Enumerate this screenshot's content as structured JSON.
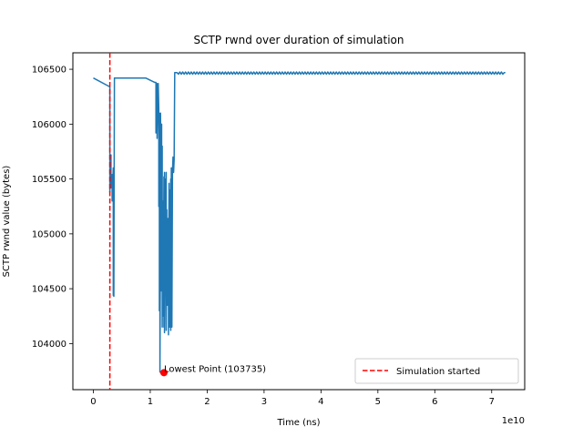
{
  "chart_data": {
    "type": "line",
    "title": "SCTP rwnd over duration of simulation",
    "xlabel": "Time (ns)",
    "ylabel": "SCTP rwnd value (bytes)",
    "x_offset_label": "1e10",
    "xlim": [
      -0.36,
      7.58
    ],
    "ylim": [
      103580,
      106650
    ],
    "x_scale": 10000000000,
    "x_ticks": [
      0,
      1,
      2,
      3,
      4,
      5,
      6,
      7
    ],
    "x_tick_labels": [
      "0",
      "1",
      "2",
      "3",
      "4",
      "5",
      "6",
      "7"
    ],
    "y_ticks": [
      104000,
      104500,
      105000,
      105500,
      106000,
      106500
    ],
    "y_tick_labels": [
      "104000",
      "104500",
      "105000",
      "105500",
      "106000",
      "106500"
    ],
    "grid": false,
    "legend_position": "lower-right",
    "series": [
      {
        "color": "#1f77b4",
        "x": [
          0.0,
          0.29,
          0.29,
          0.31,
          0.31,
          0.33,
          0.33,
          0.35,
          0.35,
          0.36,
          0.36,
          0.37,
          0.37,
          0.38,
          0.38,
          0.92,
          1.08,
          1.1,
          1.1,
          1.12,
          1.12,
          1.14,
          1.14,
          1.15,
          1.15,
          1.16,
          1.16,
          1.17,
          1.17,
          1.18,
          1.18,
          1.19,
          1.19,
          1.2,
          1.2,
          1.21,
          1.21,
          1.22,
          1.22,
          1.23,
          1.23,
          1.24,
          1.24,
          1.25,
          1.25,
          1.26,
          1.26,
          1.27,
          1.27,
          1.28,
          1.28,
          1.29,
          1.29,
          1.3,
          1.3,
          1.31,
          1.31,
          1.32,
          1.32,
          1.33,
          1.33,
          1.34,
          1.34,
          1.35,
          1.35,
          1.36,
          1.36,
          1.37,
          1.37,
          1.38,
          1.38,
          1.39,
          1.39,
          1.4,
          1.4,
          1.41,
          1.41,
          1.42,
          1.42,
          1.43,
          1.43,
          1.44,
          1.44,
          1.45,
          1.45,
          1.46,
          1.46,
          1.47,
          7.22,
          7.24
        ],
        "y": [
          106420,
          106340,
          105380,
          105720,
          105420,
          105540,
          105300,
          105600,
          104440,
          104850,
          104430,
          106420,
          106420,
          106420,
          106420,
          106420,
          106380,
          106380,
          105920,
          106370,
          105870,
          106350,
          106370,
          106140,
          105250,
          106100,
          104300,
          105280,
          103740,
          105100,
          106100,
          105400,
          104480,
          106000,
          104600,
          105800,
          104150,
          105300,
          104650,
          105060,
          104250,
          105520,
          104150,
          105560,
          104100,
          104680,
          105500,
          104900,
          104620,
          105560,
          104120,
          105220,
          104600,
          105000,
          104350,
          105140,
          104560,
          104900,
          104080,
          105460,
          104500,
          105100,
          104150,
          105400,
          104650,
          105500,
          104120,
          105600,
          104700,
          105600,
          104150,
          105500,
          105560,
          105700,
          105560,
          105620,
          105560,
          105680,
          105700,
          106470,
          106470,
          106470,
          106470,
          106470,
          106470,
          106470,
          106470,
          106470,
          106470,
          106470
        ],
        "oscillation": {
          "x_range": [
            1.47,
            7.22
          ],
          "low": 106455,
          "high": 106475
        }
      }
    ],
    "vline": {
      "x": 0.29,
      "color": "#ff0000",
      "style": "dashed",
      "label": "Simulation started"
    },
    "lowest_point": {
      "x": 1.24,
      "y": 103735,
      "color": "#ff0000",
      "annotation": "Lowest Point (103735)"
    }
  }
}
